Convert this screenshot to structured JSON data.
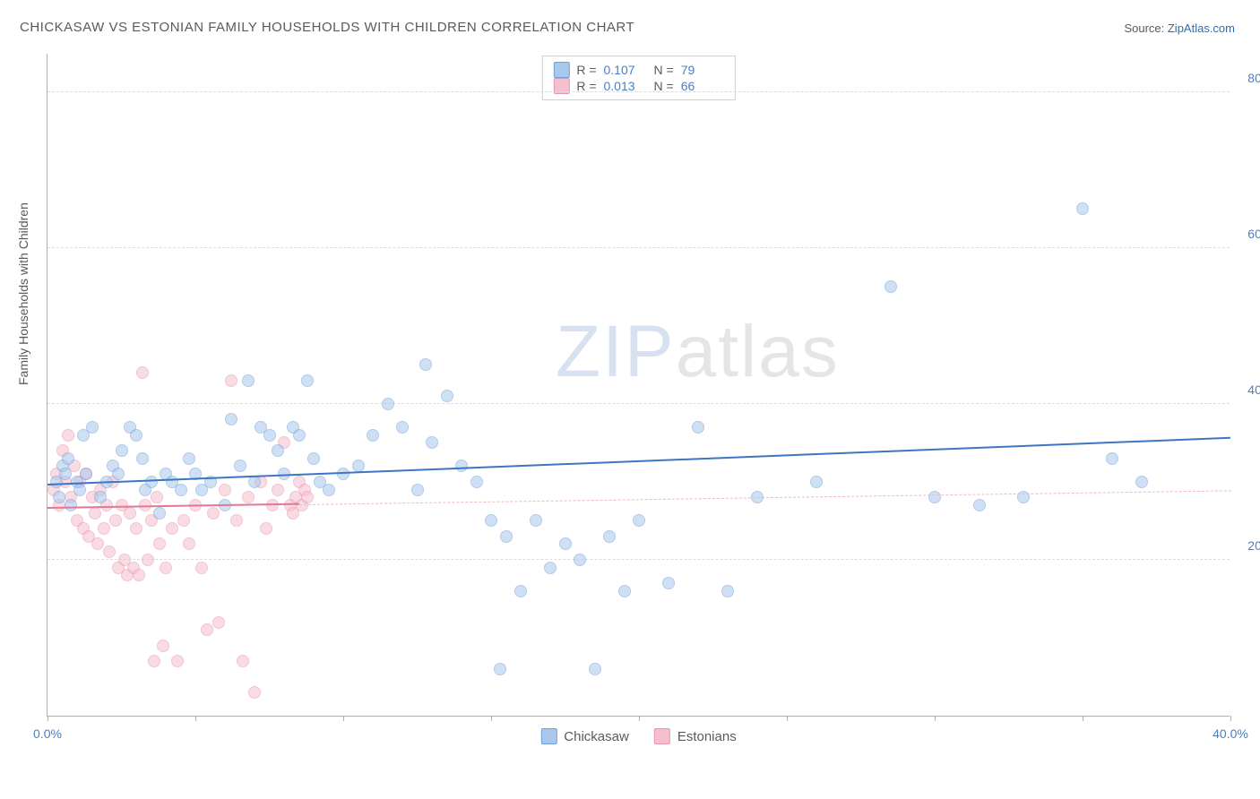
{
  "title": "CHICKASAW VS ESTONIAN FAMILY HOUSEHOLDS WITH CHILDREN CORRELATION CHART",
  "source_label": "Source: ",
  "source_name": "ZipAtlas.com",
  "ylabel": "Family Households with Children",
  "watermark_z": "ZIP",
  "watermark_rest": "atlas",
  "chart": {
    "type": "scatter",
    "xlim": [
      0,
      40
    ],
    "ylim": [
      0,
      85
    ],
    "xticks": [
      0,
      5,
      10,
      15,
      20,
      25,
      30,
      35,
      40
    ],
    "xtick_labels_shown": {
      "0": "0.0%",
      "40": "40.0%"
    },
    "yticks": [
      20,
      40,
      60,
      80
    ],
    "ytick_labels": [
      "20.0%",
      "40.0%",
      "60.0%",
      "80.0%"
    ],
    "grid_color": "#dcdcdc",
    "axis_color": "#b0b0b0",
    "background_color": "#ffffff",
    "point_radius": 7,
    "point_opacity": 0.55,
    "series": [
      {
        "name": "Chickasaw",
        "color_fill": "#a9c8ec",
        "color_stroke": "#6f9fd8",
        "r_value": "0.107",
        "n_value": "79",
        "trend": {
          "x0": 0,
          "y0": 29.5,
          "x1": 40,
          "y1": 35.5,
          "color": "#3b76c4",
          "width": 2,
          "dash": "solid"
        },
        "points": [
          [
            0.3,
            30
          ],
          [
            0.5,
            32
          ],
          [
            0.4,
            28
          ],
          [
            0.6,
            31
          ],
          [
            0.8,
            27
          ],
          [
            0.7,
            33
          ],
          [
            1.0,
            30
          ],
          [
            1.2,
            36
          ],
          [
            1.1,
            29
          ],
          [
            1.5,
            37
          ],
          [
            1.3,
            31
          ],
          [
            1.8,
            28
          ],
          [
            2.0,
            30
          ],
          [
            2.2,
            32
          ],
          [
            2.5,
            34
          ],
          [
            2.4,
            31
          ],
          [
            2.8,
            37
          ],
          [
            3.0,
            36
          ],
          [
            3.2,
            33
          ],
          [
            3.5,
            30
          ],
          [
            3.3,
            29
          ],
          [
            3.8,
            26
          ],
          [
            4.0,
            31
          ],
          [
            4.2,
            30
          ],
          [
            4.5,
            29
          ],
          [
            4.8,
            33
          ],
          [
            5.0,
            31
          ],
          [
            5.5,
            30
          ],
          [
            5.2,
            29
          ],
          [
            6.0,
            27
          ],
          [
            6.2,
            38
          ],
          [
            6.5,
            32
          ],
          [
            6.8,
            43
          ],
          [
            7.0,
            30
          ],
          [
            7.2,
            37
          ],
          [
            7.5,
            36
          ],
          [
            7.8,
            34
          ],
          [
            8.0,
            31
          ],
          [
            8.3,
            37
          ],
          [
            8.5,
            36
          ],
          [
            8.8,
            43
          ],
          [
            9.0,
            33
          ],
          [
            9.2,
            30
          ],
          [
            9.5,
            29
          ],
          [
            10.0,
            31
          ],
          [
            10.5,
            32
          ],
          [
            11.0,
            36
          ],
          [
            11.5,
            40
          ],
          [
            12.0,
            37
          ],
          [
            12.5,
            29
          ],
          [
            12.8,
            45
          ],
          [
            13.0,
            35
          ],
          [
            13.5,
            41
          ],
          [
            14.0,
            32
          ],
          [
            14.5,
            30
          ],
          [
            15.0,
            25
          ],
          [
            15.3,
            6
          ],
          [
            15.5,
            23
          ],
          [
            16.0,
            16
          ],
          [
            16.5,
            25
          ],
          [
            17.0,
            19
          ],
          [
            17.5,
            22
          ],
          [
            18.0,
            20
          ],
          [
            18.5,
            6
          ],
          [
            19.0,
            23
          ],
          [
            19.5,
            16
          ],
          [
            20.0,
            25
          ],
          [
            21.0,
            17
          ],
          [
            22.0,
            37
          ],
          [
            23.0,
            16
          ],
          [
            24.0,
            28
          ],
          [
            26.0,
            30
          ],
          [
            28.5,
            55
          ],
          [
            30.0,
            28
          ],
          [
            31.5,
            27
          ],
          [
            33.0,
            28
          ],
          [
            35.0,
            65
          ],
          [
            36.0,
            33
          ],
          [
            37.0,
            30
          ]
        ]
      },
      {
        "name": "Estonians",
        "color_fill": "#f5bfce",
        "color_stroke": "#e994ac",
        "r_value": "0.013",
        "n_value": "66",
        "trend_solid": {
          "x0": 0,
          "y0": 26.5,
          "x1": 8.5,
          "y1": 27.0,
          "color": "#e07a94",
          "width": 2
        },
        "trend_dash": {
          "x0": 8.5,
          "y0": 27.0,
          "x1": 40,
          "y1": 28.8,
          "color": "#f0b5c4",
          "width": 1.5
        },
        "points": [
          [
            0.2,
            29
          ],
          [
            0.3,
            31
          ],
          [
            0.4,
            27
          ],
          [
            0.5,
            34
          ],
          [
            0.6,
            30
          ],
          [
            0.7,
            36
          ],
          [
            0.8,
            28
          ],
          [
            0.9,
            32
          ],
          [
            1.0,
            25
          ],
          [
            1.1,
            30
          ],
          [
            1.2,
            24
          ],
          [
            1.3,
            31
          ],
          [
            1.4,
            23
          ],
          [
            1.5,
            28
          ],
          [
            1.6,
            26
          ],
          [
            1.7,
            22
          ],
          [
            1.8,
            29
          ],
          [
            1.9,
            24
          ],
          [
            2.0,
            27
          ],
          [
            2.1,
            21
          ],
          [
            2.2,
            30
          ],
          [
            2.3,
            25
          ],
          [
            2.4,
            19
          ],
          [
            2.5,
            27
          ],
          [
            2.6,
            20
          ],
          [
            2.7,
            18
          ],
          [
            2.8,
            26
          ],
          [
            2.9,
            19
          ],
          [
            3.0,
            24
          ],
          [
            3.1,
            18
          ],
          [
            3.2,
            44
          ],
          [
            3.3,
            27
          ],
          [
            3.4,
            20
          ],
          [
            3.5,
            25
          ],
          [
            3.6,
            7
          ],
          [
            3.7,
            28
          ],
          [
            3.8,
            22
          ],
          [
            3.9,
            9
          ],
          [
            4.0,
            19
          ],
          [
            4.2,
            24
          ],
          [
            4.4,
            7
          ],
          [
            4.6,
            25
          ],
          [
            4.8,
            22
          ],
          [
            5.0,
            27
          ],
          [
            5.2,
            19
          ],
          [
            5.4,
            11
          ],
          [
            5.6,
            26
          ],
          [
            5.8,
            12
          ],
          [
            6.0,
            29
          ],
          [
            6.2,
            43
          ],
          [
            6.4,
            25
          ],
          [
            6.6,
            7
          ],
          [
            6.8,
            28
          ],
          [
            7.0,
            3
          ],
          [
            7.2,
            30
          ],
          [
            7.4,
            24
          ],
          [
            7.6,
            27
          ],
          [
            7.8,
            29
          ],
          [
            8.0,
            35
          ],
          [
            8.2,
            27
          ],
          [
            8.3,
            26
          ],
          [
            8.4,
            28
          ],
          [
            8.5,
            30
          ],
          [
            8.6,
            27
          ],
          [
            8.7,
            29
          ],
          [
            8.8,
            28
          ]
        ]
      }
    ]
  },
  "legend_top": {
    "r_label": "R =",
    "n_label": "N ="
  },
  "legend_bottom": {
    "items": [
      "Chickasaw",
      "Estonians"
    ]
  }
}
